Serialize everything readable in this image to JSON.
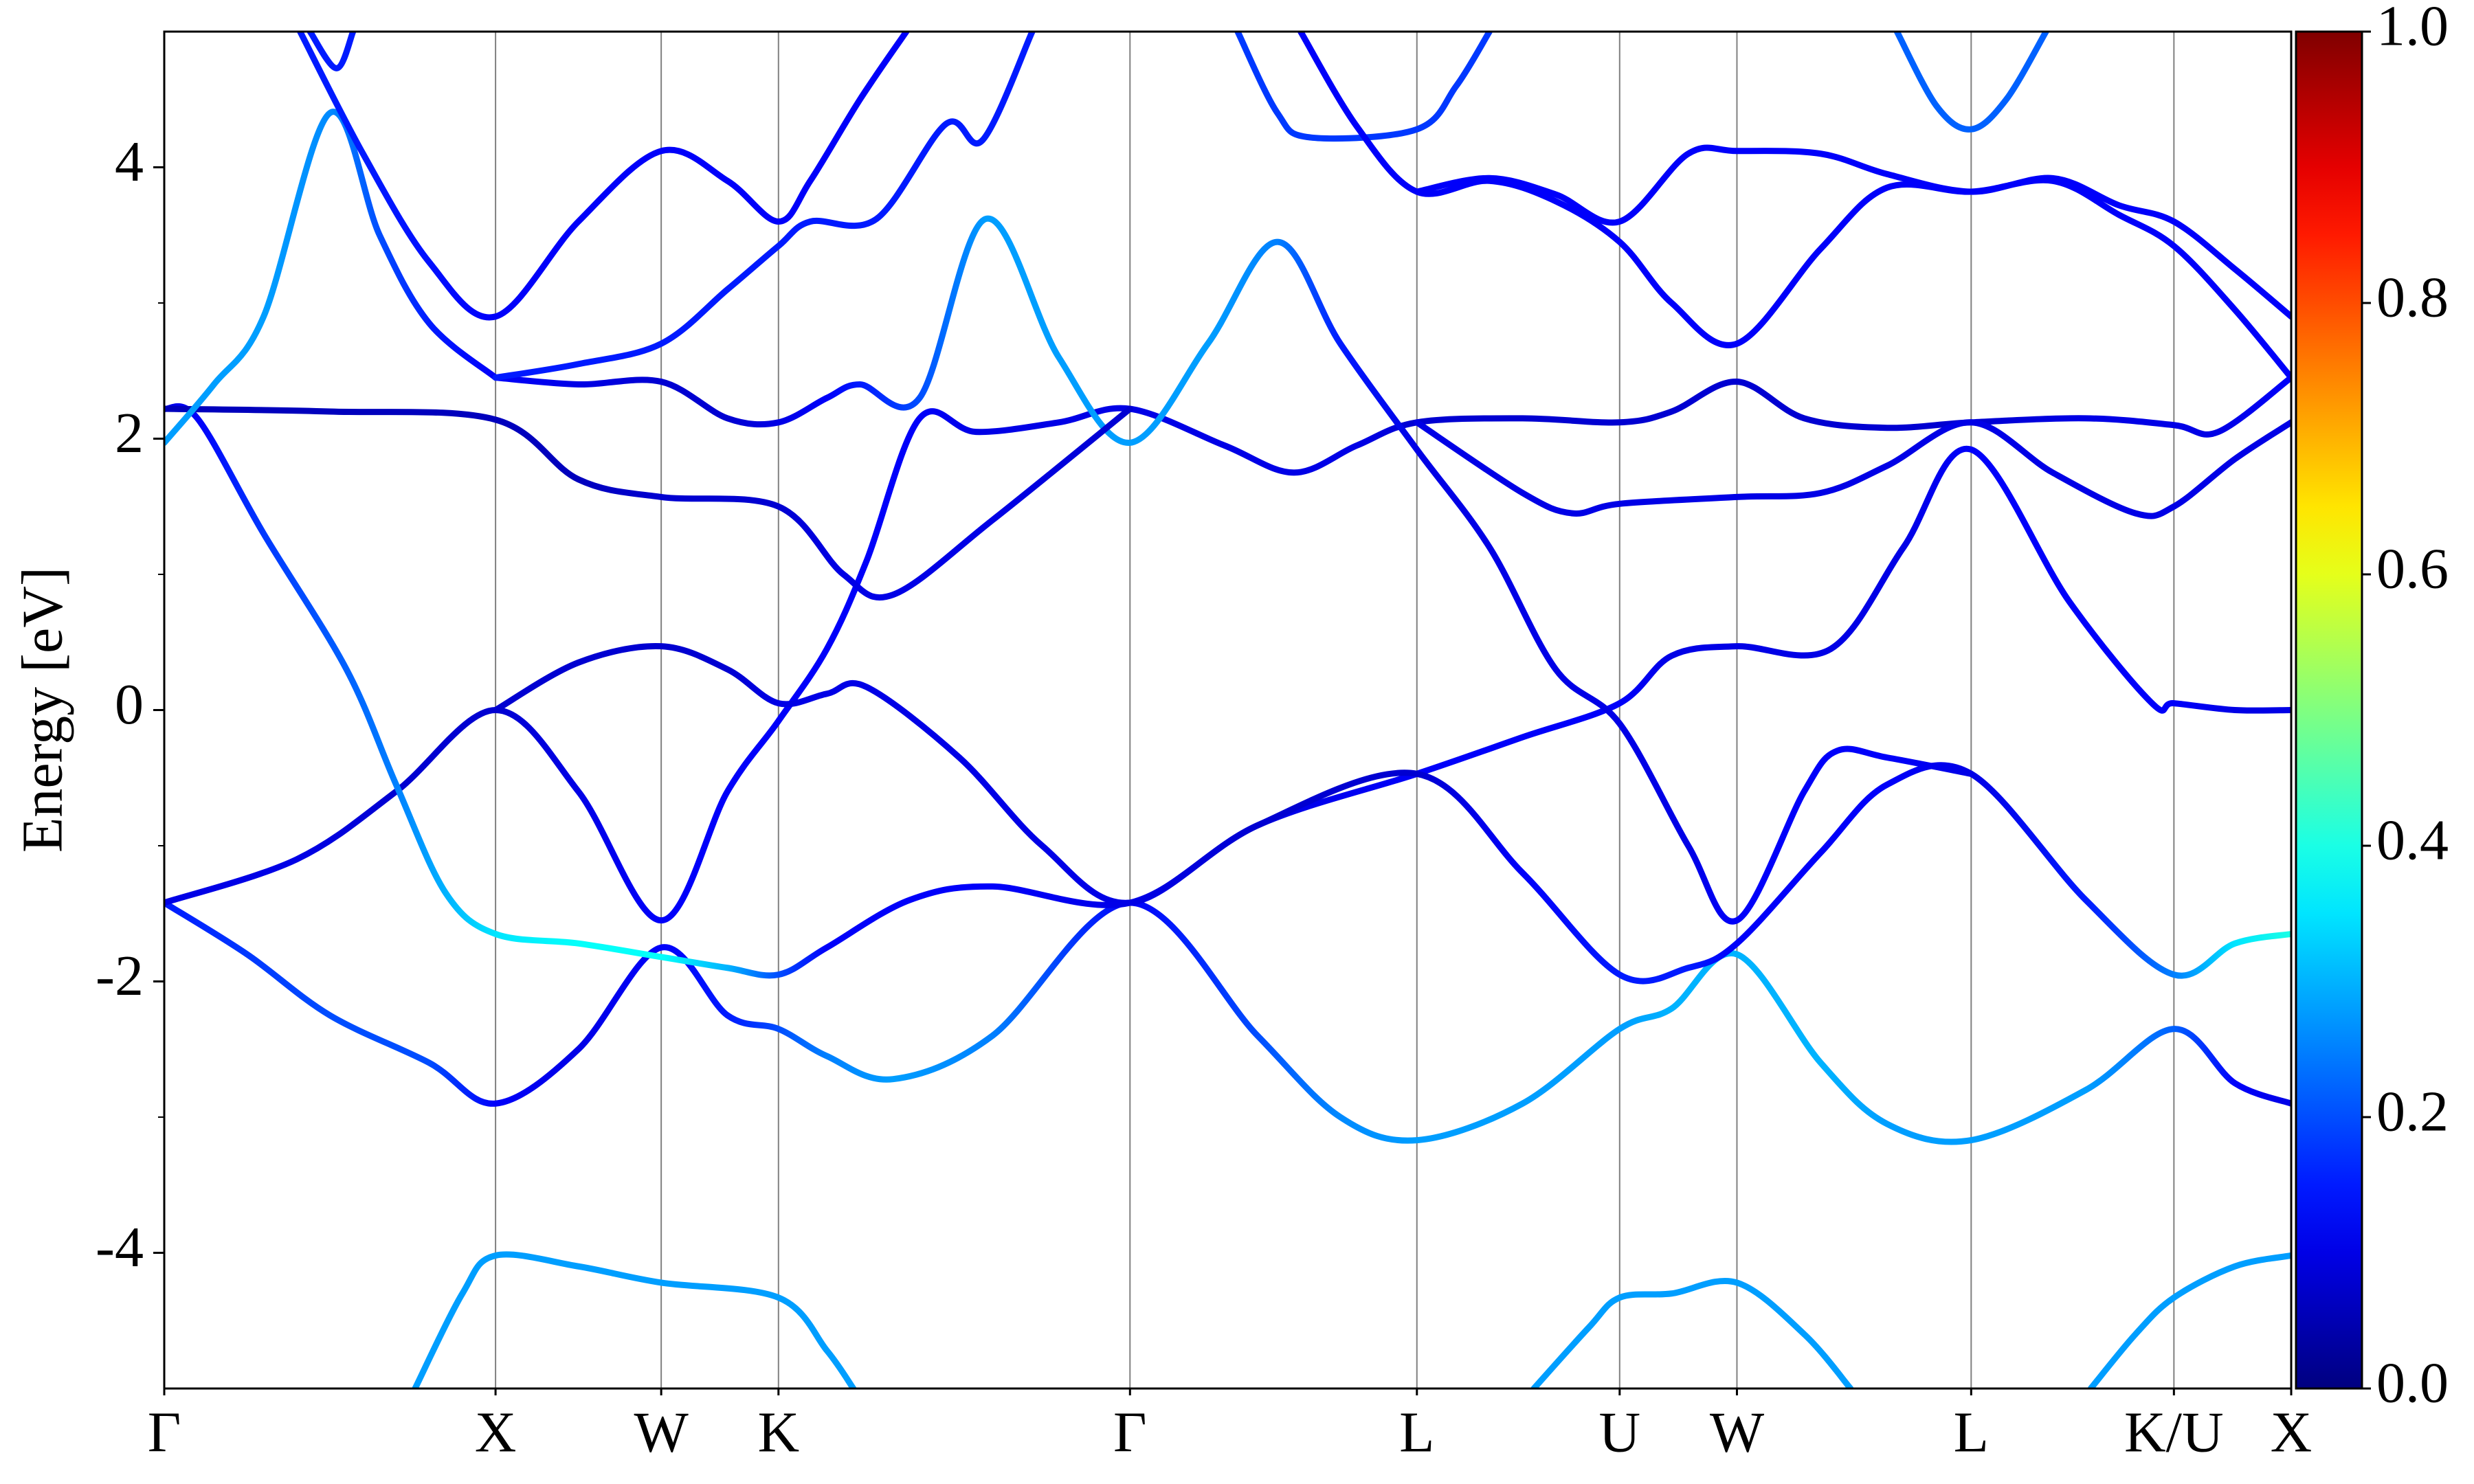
{
  "chart_data": {
    "type": "band-structure",
    "ylabel": "Energy [eV]",
    "xlim": [
      0,
      6.42
    ],
    "ylim": [
      -5,
      5
    ],
    "yticks": [
      -4,
      -2,
      0,
      2,
      4
    ],
    "yminorticks": [
      -3,
      -1,
      1,
      3
    ],
    "xticks": [
      {
        "value": 0,
        "label": "Γ"
      },
      {
        "value": 1.0,
        "label": "X"
      },
      {
        "value": 1.5,
        "label": "W"
      },
      {
        "value": 1.854,
        "label": "K"
      },
      {
        "value": 2.915,
        "label": "Γ"
      },
      {
        "value": 3.781,
        "label": "L"
      },
      {
        "value": 4.393,
        "label": "U"
      },
      {
        "value": 4.747,
        "label": "W"
      },
      {
        "value": 5.454,
        "label": "L"
      },
      {
        "value": 6.066,
        "label": "K/U"
      },
      {
        "value": 6.42,
        "label": "X"
      }
    ],
    "grid": "x",
    "colormap": "jet",
    "colorbar": {
      "clim": [
        0,
        1
      ],
      "ticks": [
        {
          "value": 0,
          "label": "0.0"
        },
        {
          "value": 0.2,
          "label": "0.2"
        },
        {
          "value": 0.4,
          "label": "0.4"
        },
        {
          "value": 0.6,
          "label": "0.6"
        },
        {
          "value": 0.8,
          "label": "0.8"
        },
        {
          "value": 1,
          "label": "1.0"
        }
      ]
    },
    "series": [
      {
        "x": [
          0.757,
          0.9,
          1.0,
          1.25,
          1.5,
          1.854,
          2.0,
          2.08,
          null,
          4.134,
          4.3,
          4.393,
          4.55,
          4.747,
          4.95,
          5.09,
          null,
          5.815,
          5.95,
          6.066,
          6.25,
          6.42
        ],
        "values": [
          -5,
          -4.3,
          -4.02,
          -4.1,
          -4.22,
          -4.33,
          -4.72,
          -5,
          null,
          -5,
          -4.55,
          -4.33,
          -4.3,
          -4.22,
          -4.6,
          -5,
          null,
          -5,
          -4.6,
          -4.33,
          -4.1,
          -4.02
        ],
        "weights": [
          0.28,
          0.28,
          0.28,
          0.28,
          0.28,
          0.28,
          0.28,
          0.28,
          null,
          0.28,
          0.28,
          0.28,
          0.28,
          0.28,
          0.28,
          0.28,
          null,
          0.28,
          0.28,
          0.28,
          0.28,
          0.28
        ]
      },
      {
        "x": [
          0,
          0.25,
          0.5,
          0.8,
          1.0,
          1.25,
          1.5,
          1.7,
          1.854,
          2.0,
          2.2,
          2.5,
          2.915,
          3.3,
          3.55,
          3.781,
          4.1,
          4.393,
          4.55,
          4.747,
          5.0,
          5.2,
          5.454,
          5.8,
          6.066,
          6.25,
          6.42
        ],
        "values": [
          -1.42,
          -1.8,
          -2.25,
          -2.6,
          -2.9,
          -2.5,
          -1.75,
          -2.25,
          -2.35,
          -2.55,
          -2.72,
          -2.4,
          -1.42,
          -2.4,
          -3.0,
          -3.17,
          -2.9,
          -2.35,
          -2.2,
          -1.8,
          -2.6,
          -3.05,
          -3.17,
          -2.8,
          -2.35,
          -2.75,
          -2.9
        ],
        "weights": [
          0.15,
          0.18,
          0.2,
          0.2,
          0.12,
          0.1,
          0.12,
          0.15,
          0.2,
          0.25,
          0.28,
          0.25,
          0.12,
          0.2,
          0.26,
          0.28,
          0.28,
          0.28,
          0.3,
          0.3,
          0.3,
          0.28,
          0.28,
          0.28,
          0.22,
          0.12,
          0.1
        ]
      },
      {
        "x": [
          0,
          0.4,
          0.7,
          1.0,
          1.25,
          1.5,
          1.7,
          1.854,
          2.0,
          2.12,
          2.28,
          2.45,
          2.7,
          2.915,
          3.2,
          3.41,
          3.6,
          3.781,
          4.1,
          4.393,
          4.55,
          4.747,
          4.95,
          5.2,
          5.454,
          5.8,
          6.066,
          6.2,
          6.42
        ],
        "values": [
          -1.42,
          -1.1,
          -0.6,
          0.0,
          -0.6,
          -1.55,
          -0.6,
          -0.08,
          0.45,
          1.1,
          2.15,
          2.05,
          2.12,
          2.22,
          1.95,
          1.75,
          1.95,
          2.12,
          2.15,
          2.12,
          2.2,
          2.42,
          2.15,
          2.08,
          2.12,
          2.15,
          2.1,
          2.05,
          2.45
        ],
        "weights": [
          0.1,
          0.1,
          0.08,
          0.08,
          0.1,
          0.12,
          0.12,
          0.12,
          0.12,
          0.12,
          0.12,
          0.1,
          0.1,
          0.1,
          0.1,
          0.1,
          0.1,
          0.08,
          0.08,
          0.08,
          0.08,
          0.08,
          0.08,
          0.08,
          0.08,
          0.1,
          0.1,
          0.1,
          0.12
        ]
      },
      {
        "x": [
          1.0,
          1.25,
          1.5,
          1.7,
          1.854,
          2.0,
          2.12,
          2.4,
          2.65,
          2.915,
          3.3,
          3.781,
          4.1,
          4.393,
          4.55,
          4.747,
          5.03,
          5.25,
          5.454,
          5.75,
          6.0,
          6.066,
          6.25,
          6.42
        ],
        "values": [
          0.0,
          0.35,
          0.47,
          0.3,
          0.05,
          0.12,
          0.17,
          -0.35,
          -1.0,
          -1.42,
          -0.85,
          -0.47,
          -0.2,
          0.05,
          0.4,
          0.47,
          0.45,
          1.2,
          1.92,
          0.8,
          0.05,
          0.05,
          0.0,
          0.0
        ],
        "weights": [
          0.08,
          0.08,
          0.08,
          0.08,
          0.1,
          0.1,
          0.1,
          0.1,
          0.1,
          0.1,
          0.1,
          0.12,
          0.12,
          0.12,
          0.1,
          0.1,
          0.1,
          0.1,
          0.12,
          0.12,
          0.12,
          0.12,
          0.1,
          0.1
        ]
      },
      {
        "x": [
          0,
          0.1,
          0.3,
          0.55,
          0.7,
          0.85,
          1.0,
          1.25,
          1.5,
          1.7,
          1.854,
          2.0,
          2.25,
          2.5,
          2.915,
          3.3,
          3.781,
          4.1,
          4.393,
          4.6,
          4.747,
          5.0,
          5.2,
          5.454,
          5.8,
          6.066,
          6.25,
          6.42
        ],
        "values": [
          2.22,
          2.15,
          1.3,
          0.3,
          -0.55,
          -1.35,
          -1.65,
          -1.72,
          -1.82,
          -1.9,
          -1.95,
          -1.75,
          -1.4,
          -1.3,
          -1.42,
          -0.85,
          -0.47,
          -1.2,
          -1.95,
          -1.9,
          -1.72,
          -1.05,
          -0.55,
          -0.47,
          -1.4,
          -1.95,
          -1.72,
          -1.65
        ],
        "weights": [
          0.1,
          0.12,
          0.18,
          0.22,
          0.25,
          0.3,
          0.35,
          0.38,
          0.38,
          0.3,
          0.2,
          0.12,
          0.12,
          0.12,
          0.1,
          0.08,
          0.08,
          0.12,
          0.15,
          0.15,
          0.12,
          0.12,
          0.12,
          0.1,
          0.15,
          0.25,
          0.35,
          0.4
        ]
      },
      {
        "x": [
          1.0,
          1.25,
          1.5,
          1.7,
          1.854,
          2.0,
          2.1,
          2.28,
          2.48,
          2.7,
          2.915,
          3.15,
          3.36,
          3.55,
          3.781,
          4.0,
          4.2,
          4.393,
          4.6,
          4.747,
          4.95,
          5.05,
          5.2,
          5.454
        ],
        "values": [
          2.45,
          2.4,
          2.42,
          2.15,
          2.12,
          2.3,
          2.4,
          2.3,
          3.62,
          2.6,
          1.97,
          2.7,
          3.45,
          2.7,
          1.92,
          1.2,
          0.3,
          -0.1,
          -1.0,
          -1.55,
          -0.6,
          -0.3,
          -0.35,
          -0.47
        ],
        "weights": [
          0.12,
          0.1,
          0.08,
          0.08,
          0.1,
          0.12,
          0.15,
          0.2,
          0.28,
          0.28,
          0.28,
          0.28,
          0.25,
          0.15,
          0.1,
          0.1,
          0.1,
          0.1,
          0.1,
          0.12,
          0.12,
          0.12,
          0.12,
          0.1
        ]
      },
      {
        "x": [
          0,
          0.5,
          1.0,
          1.25,
          1.5,
          1.854,
          2.05,
          2.2,
          2.5,
          2.915
        ],
        "values": [
          2.22,
          2.2,
          2.14,
          1.7,
          1.57,
          1.5,
          1.0,
          0.85,
          1.4,
          2.22
        ],
        "weights": [
          0.06,
          0.06,
          0.06,
          0.06,
          0.08,
          0.08,
          0.1,
          0.1,
          0.1,
          0.08
        ]
      },
      {
        "x": [
          0,
          0.15,
          0.3,
          0.5,
          0.65,
          0.8,
          1.0
        ],
        "values": [
          1.97,
          2.4,
          2.9,
          4.4,
          3.5,
          2.85,
          2.45
        ],
        "weights": [
          0.28,
          0.28,
          0.28,
          0.26,
          0.2,
          0.15,
          0.12
        ]
      },
      {
        "x": [
          0.41,
          0.6,
          0.8,
          1.0,
          1.25,
          1.5,
          1.7,
          1.854,
          1.95,
          2.1,
          2.24
        ],
        "values": [
          5,
          4.1,
          3.3,
          2.9,
          3.6,
          4.12,
          3.9,
          3.6,
          3.9,
          4.5,
          5
        ],
        "weights": [
          0.15,
          0.15,
          0.14,
          0.12,
          0.12,
          0.12,
          0.12,
          0.12,
          0.12,
          0.12,
          0.12
        ]
      },
      {
        "x": [
          1.0,
          1.25,
          1.5,
          1.7,
          1.854,
          1.95,
          2.15,
          2.36,
          2.47,
          2.62
        ],
        "values": [
          2.45,
          2.55,
          2.7,
          3.1,
          3.42,
          3.6,
          3.62,
          4.32,
          4.2,
          5.0
        ],
        "weights": [
          0.15,
          0.15,
          0.15,
          0.15,
          0.15,
          0.15,
          0.15,
          0.15,
          0.15,
          0.15
        ]
      },
      {
        "x": [
          3.24,
          3.36,
          3.46,
          3.781,
          3.9,
          4.0
        ],
        "values": [
          5,
          4.4,
          4.22,
          4.28,
          4.6,
          5
        ],
        "weights": [
          0.18,
          0.18,
          0.18,
          0.18,
          0.18,
          0.18
        ]
      },
      {
        "x": [
          3.43,
          3.6,
          3.781,
          4.0,
          4.2,
          4.393,
          4.55,
          4.747,
          5.0,
          5.2,
          5.454,
          5.7,
          5.9,
          6.066,
          6.25,
          6.42
        ],
        "values": [
          5,
          4.3,
          3.82,
          3.9,
          3.75,
          3.45,
          3.0,
          2.7,
          3.4,
          3.85,
          3.82,
          3.9,
          3.65,
          3.42,
          2.95,
          2.45
        ],
        "weights": [
          0.12,
          0.12,
          0.12,
          0.12,
          0.12,
          0.12,
          0.12,
          0.12,
          0.12,
          0.12,
          0.12,
          0.12,
          0.12,
          0.12,
          0.12,
          0.12
        ]
      },
      {
        "x": [
          3.781,
          4.0,
          4.2,
          4.393,
          4.6,
          4.747,
          5.0,
          5.2,
          5.454,
          5.7,
          5.9,
          6.066,
          6.25,
          6.42
        ],
        "values": [
          3.82,
          3.92,
          3.8,
          3.6,
          4.1,
          4.12,
          4.1,
          3.95,
          3.82,
          3.92,
          3.72,
          3.6,
          3.25,
          2.9
        ],
        "weights": [
          0.12,
          0.12,
          0.12,
          0.12,
          0.12,
          0.12,
          0.12,
          0.12,
          0.12,
          0.12,
          0.12,
          0.12,
          0.12,
          0.12
        ]
      },
      {
        "x": [
          5.23,
          5.35,
          5.454,
          5.56,
          5.68
        ],
        "values": [
          5,
          4.45,
          4.28,
          4.5,
          5
        ],
        "weights": [
          0.22,
          0.22,
          0.22,
          0.22,
          0.22
        ]
      },
      {
        "x": [
          3.781,
          4.1,
          4.25,
          4.393,
          4.747,
          5.0,
          5.2,
          5.454,
          5.7,
          5.95,
          6.066,
          6.25,
          6.42
        ],
        "values": [
          2.12,
          1.6,
          1.45,
          1.52,
          1.57,
          1.6,
          1.8,
          2.12,
          1.75,
          1.45,
          1.5,
          1.85,
          2.12
        ],
        "weights": [
          0.1,
          0.1,
          0.1,
          0.1,
          0.1,
          0.1,
          0.1,
          0.1,
          0.1,
          0.1,
          0.1,
          0.1,
          0.1
        ]
      },
      {
        "x": [
          0.44,
          0.52,
          0.57
        ],
        "values": [
          5,
          4.73,
          5
        ],
        "weights": [
          0.15,
          0.15,
          0.15
        ]
      }
    ]
  }
}
